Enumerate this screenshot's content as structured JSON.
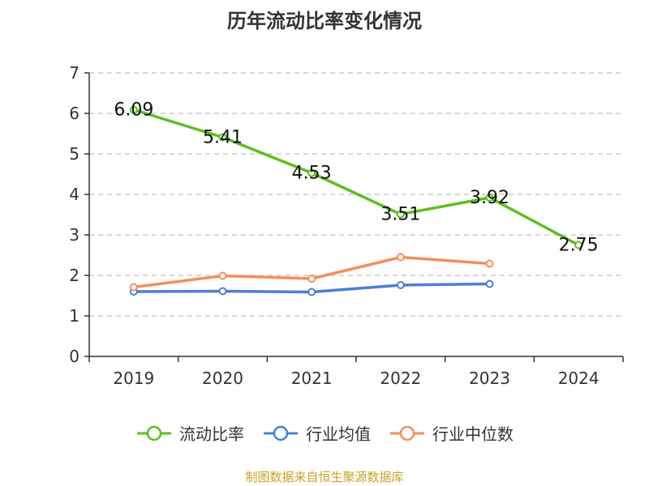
{
  "chart_data": {
    "type": "line",
    "title": "历年流动比率变化情况",
    "categories": [
      "2019",
      "2020",
      "2021",
      "2022",
      "2023",
      "2024"
    ],
    "ylim": [
      0,
      7
    ],
    "yticks": [
      0,
      1,
      2,
      3,
      4,
      5,
      6,
      7
    ],
    "grid": true,
    "legend_position": "bottom",
    "series": [
      {
        "name": "流动比率",
        "color": "#5cbf1e",
        "values": [
          6.09,
          5.41,
          4.53,
          3.51,
          3.92,
          2.75
        ],
        "labels": [
          "6.09",
          "5.41",
          "4.53",
          "3.51",
          "3.92",
          "2.75"
        ]
      },
      {
        "name": "行业均值",
        "color": "#4a7fd6",
        "values": [
          1.6,
          1.61,
          1.59,
          1.76,
          1.79,
          null
        ]
      },
      {
        "name": "行业中位数",
        "color": "#f48f5a",
        "values": [
          1.71,
          1.99,
          1.92,
          2.45,
          2.29,
          null
        ]
      }
    ]
  },
  "source": "制图数据来自恒生聚源数据库"
}
